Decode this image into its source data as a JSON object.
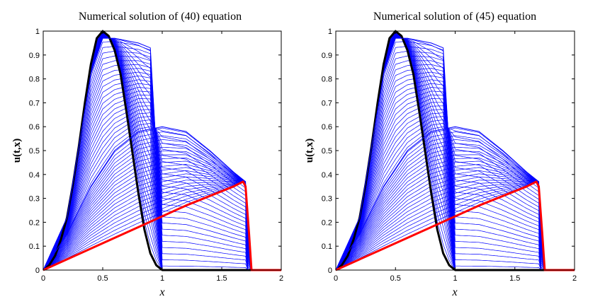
{
  "chart_data": [
    {
      "type": "line",
      "title": "Numerical solution of (40) equation",
      "xlabel": "x",
      "ylabel": "u(t,x)",
      "xlim": [
        0,
        2
      ],
      "ylim": [
        0,
        1
      ],
      "xticks": [
        "0",
        "0.5",
        "1",
        "1.5",
        "2"
      ],
      "yticks": [
        "0",
        "0.1",
        "0.2",
        "0.3",
        "0.4",
        "0.5",
        "0.6",
        "0.7",
        "0.8",
        "0.9",
        "1"
      ],
      "grid": false,
      "legend": "none",
      "colors": {
        "initial": "#000000",
        "intermediate": "#0000ff",
        "final": "#ff0000"
      },
      "series": [
        {
          "role": "initial",
          "x": [
            0,
            0.05,
            0.1,
            0.15,
            0.2,
            0.25,
            0.3,
            0.35,
            0.4,
            0.45,
            0.5,
            0.55,
            0.6,
            0.65,
            0.7,
            0.75,
            0.8,
            0.85,
            0.9,
            0.95,
            1.0,
            2.0
          ],
          "y": [
            0,
            0.02,
            0.06,
            0.13,
            0.22,
            0.36,
            0.52,
            0.7,
            0.86,
            0.97,
            1.0,
            0.98,
            0.92,
            0.82,
            0.66,
            0.49,
            0.32,
            0.17,
            0.07,
            0.02,
            0,
            0
          ]
        },
        {
          "role": "intermediate",
          "x": [
            0,
            0.2,
            0.4,
            0.5,
            0.6,
            0.7,
            0.8,
            0.9,
            0.95,
            1.0,
            2.0
          ],
          "y": [
            0,
            0.22,
            0.82,
            0.97,
            0.97,
            0.96,
            0.95,
            0.93,
            0.5,
            0,
            0
          ]
        },
        {
          "role": "intermediate",
          "x": [
            0,
            0.2,
            0.4,
            0.6,
            0.8,
            1.0,
            1.2,
            1.4,
            1.6,
            1.7,
            1.72,
            2.0
          ],
          "y": [
            0,
            0.15,
            0.35,
            0.5,
            0.58,
            0.6,
            0.58,
            0.5,
            0.41,
            0.37,
            0,
            0
          ]
        },
        {
          "role": "final",
          "x": [
            0,
            0.4,
            0.8,
            1.2,
            1.6,
            1.68,
            1.7,
            1.73,
            1.75,
            2.0
          ],
          "y": [
            0,
            0.09,
            0.18,
            0.27,
            0.35,
            0.37,
            0.35,
            0.15,
            0,
            0
          ]
        }
      ]
    },
    {
      "type": "line",
      "title": "Numerical solution of (45) equation",
      "xlabel": "x",
      "ylabel": "u(t,x)",
      "xlim": [
        0,
        2
      ],
      "ylim": [
        0,
        1
      ],
      "xticks": [
        "0",
        "0.5",
        "1",
        "1.5",
        "2"
      ],
      "yticks": [
        "0",
        "0.1",
        "0.2",
        "0.3",
        "0.4",
        "0.5",
        "0.6",
        "0.7",
        "0.8",
        "0.9",
        "1"
      ],
      "grid": false,
      "legend": "none",
      "colors": {
        "initial": "#000000",
        "intermediate": "#0000ff",
        "final": "#ff0000"
      },
      "series": [
        {
          "role": "initial",
          "x": [
            0,
            0.05,
            0.1,
            0.15,
            0.2,
            0.25,
            0.3,
            0.35,
            0.4,
            0.45,
            0.5,
            0.55,
            0.6,
            0.65,
            0.7,
            0.75,
            0.8,
            0.85,
            0.9,
            0.95,
            1.0,
            2.0
          ],
          "y": [
            0,
            0.02,
            0.06,
            0.13,
            0.22,
            0.36,
            0.52,
            0.7,
            0.86,
            0.97,
            1.0,
            0.98,
            0.92,
            0.82,
            0.66,
            0.49,
            0.32,
            0.17,
            0.07,
            0.02,
            0,
            0
          ]
        },
        {
          "role": "intermediate",
          "x": [
            0,
            0.2,
            0.4,
            0.5,
            0.6,
            0.7,
            0.8,
            0.9,
            0.95,
            1.0,
            2.0
          ],
          "y": [
            0,
            0.22,
            0.82,
            0.97,
            0.97,
            0.96,
            0.95,
            0.93,
            0.5,
            0,
            0
          ]
        },
        {
          "role": "intermediate",
          "x": [
            0,
            0.2,
            0.4,
            0.6,
            0.8,
            1.0,
            1.2,
            1.4,
            1.6,
            1.7,
            1.72,
            2.0
          ],
          "y": [
            0,
            0.15,
            0.35,
            0.5,
            0.58,
            0.6,
            0.58,
            0.5,
            0.41,
            0.37,
            0,
            0
          ]
        },
        {
          "role": "final",
          "x": [
            0,
            0.4,
            0.8,
            1.2,
            1.6,
            1.68,
            1.7,
            1.73,
            1.75,
            2.0
          ],
          "y": [
            0,
            0.09,
            0.18,
            0.27,
            0.35,
            0.37,
            0.35,
            0.15,
            0,
            0
          ]
        }
      ]
    }
  ]
}
